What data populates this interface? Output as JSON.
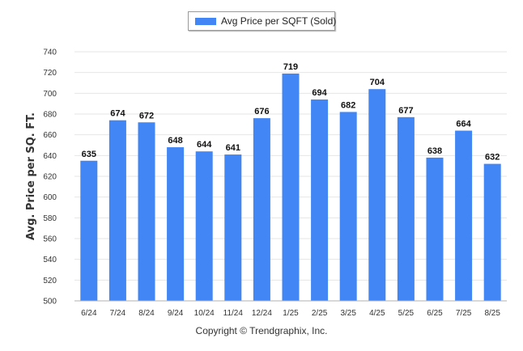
{
  "legend": {
    "label": "Avg Price per SQFT (Sold)"
  },
  "copyright": "Copyright © Trendgraphix, Inc.",
  "colors": {
    "bar": "#4285f4",
    "grid": "#e6e6e6",
    "axis": "#b0b0b0"
  },
  "chart_data": {
    "type": "bar",
    "title": "",
    "xlabel": "",
    "ylabel": "Avg. Price per SQ. FT.",
    "categories": [
      "6/24",
      "7/24",
      "8/24",
      "9/24",
      "10/24",
      "11/24",
      "12/24",
      "1/25",
      "2/25",
      "3/25",
      "4/25",
      "5/25",
      "6/25",
      "7/25",
      "8/25"
    ],
    "series": [
      {
        "name": "Avg Price per SQFT (Sold)",
        "values": [
          635,
          674,
          672,
          648,
          644,
          641,
          676,
          719,
          694,
          682,
          704,
          677,
          638,
          664,
          632
        ]
      }
    ],
    "ylim": [
      500,
      740
    ],
    "yticks": [
      500,
      520,
      540,
      560,
      580,
      600,
      620,
      640,
      660,
      680,
      700,
      720,
      740
    ],
    "grid": true,
    "legend_position": "top-center",
    "data_labels": true
  }
}
